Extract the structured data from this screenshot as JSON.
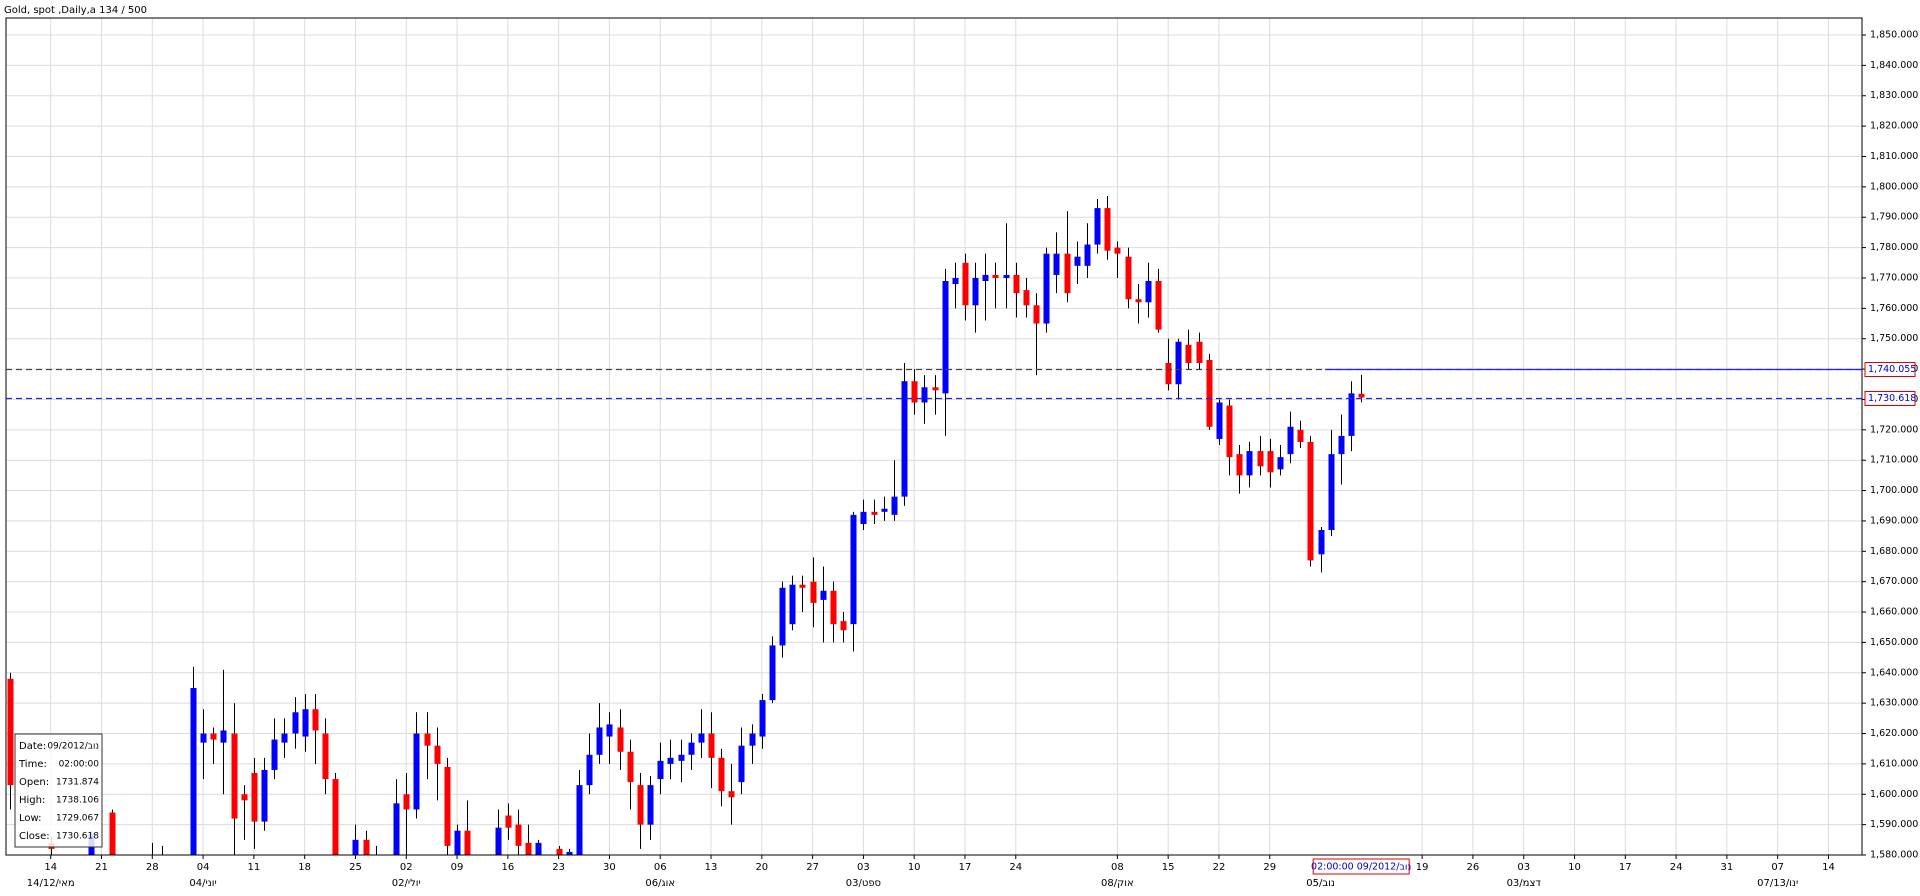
{
  "chart_data": {
    "type": "candlestick",
    "title": "Gold, spot ,Daily,a 134 / 500",
    "up_color": "#0000ff",
    "down_color": "#ff0000",
    "wick_color": "#000000",
    "grid": true,
    "xlim": [
      -0.4,
      182.3
    ],
    "ylim": [
      1580,
      1855.6
    ],
    "yticks": [
      {
        "value": 1580,
        "label": "1,580.000"
      },
      {
        "value": 1590,
        "label": "1,590.000"
      },
      {
        "value": 1600,
        "label": "1,600.000"
      },
      {
        "value": 1610,
        "label": "1,610.000"
      },
      {
        "value": 1620,
        "label": "1,620.000"
      },
      {
        "value": 1630,
        "label": "1,630.000"
      },
      {
        "value": 1640,
        "label": "1,640.000"
      },
      {
        "value": 1650,
        "label": "1,650.000"
      },
      {
        "value": 1660,
        "label": "1,660.000"
      },
      {
        "value": 1670,
        "label": "1,670.000"
      },
      {
        "value": 1680,
        "label": "1,680.000"
      },
      {
        "value": 1690,
        "label": "1,690.000"
      },
      {
        "value": 1700,
        "label": "1,700.000"
      },
      {
        "value": 1710,
        "label": "1,710.000"
      },
      {
        "value": 1720,
        "label": "1,720.000"
      },
      {
        "value": 1730,
        "label": "1,730.000"
      },
      {
        "value": 1740,
        "label": "1,740.000"
      },
      {
        "value": 1750,
        "label": "1,750.000"
      },
      {
        "value": 1760,
        "label": "1,760.000"
      },
      {
        "value": 1770,
        "label": "1,770.000"
      },
      {
        "value": 1780,
        "label": "1,780.000"
      },
      {
        "value": 1790,
        "label": "1,790.000"
      },
      {
        "value": 1800,
        "label": "1,800.000"
      },
      {
        "value": 1810,
        "label": "1,810.000"
      },
      {
        "value": 1820,
        "label": "1,820.000"
      },
      {
        "value": 1830,
        "label": "1,830.000"
      },
      {
        "value": 1840,
        "label": "1,840.000"
      },
      {
        "value": 1850,
        "label": "1,850.000"
      }
    ],
    "xticks": [
      {
        "value": 4,
        "label": "14"
      },
      {
        "value": 9,
        "label": "21"
      },
      {
        "value": 14,
        "label": "28"
      },
      {
        "value": 19,
        "label": "04"
      },
      {
        "value": 24,
        "label": "11"
      },
      {
        "value": 29,
        "label": "18"
      },
      {
        "value": 34,
        "label": "25"
      },
      {
        "value": 39,
        "label": "02"
      },
      {
        "value": 44,
        "label": "09"
      },
      {
        "value": 49,
        "label": "16"
      },
      {
        "value": 54,
        "label": "23"
      },
      {
        "value": 59,
        "label": "30"
      },
      {
        "value": 64,
        "label": "06"
      },
      {
        "value": 69,
        "label": "13"
      },
      {
        "value": 74,
        "label": "20"
      },
      {
        "value": 79,
        "label": "27"
      },
      {
        "value": 84,
        "label": "03"
      },
      {
        "value": 89,
        "label": "10"
      },
      {
        "value": 94,
        "label": "17"
      },
      {
        "value": 99,
        "label": "24"
      },
      {
        "value": 109,
        "label": "08"
      },
      {
        "value": 114,
        "label": "15"
      },
      {
        "value": 119,
        "label": "22"
      },
      {
        "value": 124,
        "label": "29"
      },
      {
        "value": 139,
        "label": "19"
      },
      {
        "value": 144,
        "label": "26"
      },
      {
        "value": 149,
        "label": "03"
      },
      {
        "value": 154,
        "label": "10"
      },
      {
        "value": 159,
        "label": "17"
      },
      {
        "value": 164,
        "label": "24"
      },
      {
        "value": 169,
        "label": "31"
      },
      {
        "value": 174,
        "label": "07"
      },
      {
        "value": 179,
        "label": "14"
      }
    ],
    "xticks_month": [
      {
        "value": 4,
        "label": "14/12/מאי"
      },
      {
        "value": 19,
        "label": "04/יוני"
      },
      {
        "value": 39,
        "label": "02/יולי"
      },
      {
        "value": 64,
        "label": "06/אוג"
      },
      {
        "value": 84,
        "label": "03/ספט"
      },
      {
        "value": 109,
        "label": "08/אוק"
      },
      {
        "value": 129,
        "label": "05/נוב"
      },
      {
        "value": 149,
        "label": "03/דצמ"
      },
      {
        "value": 174,
        "label": "07/13/ינו"
      }
    ],
    "open": [
      1638,
      null,
      null,
      null,
      1584,
      null,
      null,
      null,
      1580,
      null,
      1594,
      null,
      null,
      null,
      1576,
      1575,
      null,
      null,
      1575,
      1617,
      1620,
      1617,
      1620,
      1600,
      1607,
      1591,
      1608,
      1617,
      1620,
      1619,
      1628,
      1620,
      1605,
      null,
      1578,
      1585,
      1578,
      null,
      1578,
      1600,
      1595,
      1620,
      1616,
      1609,
      1577,
      1588,
      null,
      null,
      1575,
      1593,
      1590,
      1584,
      1578,
      null,
      1582,
      1579,
      1578,
      1603,
      1613,
      1619,
      1622,
      1614,
      1603,
      1590,
      1605,
      1610,
      1611,
      1613,
      1617,
      1620,
      1612,
      1601,
      1604,
      1616,
      1619,
      1631,
      1649,
      1656,
      1669,
      1670,
      1664,
      1667,
      1657,
      1656,
      1689,
      1693,
      1693,
      1692,
      1698,
      1736,
      1729,
      1734,
      1732,
      1768,
      1775,
      1761,
      1769,
      1771,
      1770,
      1771,
      1766,
      1761,
      1755,
      1771,
      1778,
      1774,
      1774,
      1781,
      1793,
      1780,
      1777,
      1763,
      1762,
      1769,
      1742,
      1735,
      1748,
      1749,
      1743,
      1717,
      1728,
      1712,
      1705,
      1713,
      1713,
      1707,
      1712,
      1720,
      1716,
      1679,
      1687,
      1712,
      1718,
      1731.874
    ],
    "high": [
      1640,
      null,
      null,
      null,
      1586,
      null,
      null,
      null,
      1588,
      null,
      1595,
      null,
      null,
      null,
      1584,
      1583,
      null,
      null,
      1642,
      1628,
      1622,
      1641,
      1630,
      1603,
      1612,
      1612,
      1625,
      1625,
      1632,
      1633,
      1633,
      1625,
      1607,
      null,
      1590,
      1588,
      1583,
      null,
      1605,
      1607,
      1627,
      1627,
      1622,
      1612,
      1590,
      1598,
      null,
      null,
      1595,
      1597,
      1595,
      1590,
      1585,
      null,
      1583,
      1582,
      1608,
      1620,
      1630,
      1627,
      1628,
      1618,
      1607,
      1606,
      1617,
      1618,
      1618,
      1620,
      1628,
      1627,
      1615,
      1610,
      1622,
      1623,
      1633,
      1652,
      1670,
      1672,
      1672,
      1678,
      1675,
      1670,
      1660,
      1693,
      1697,
      1697,
      1698,
      1710,
      1742,
      1740,
      1738,
      1738,
      1773,
      1775,
      1778,
      1775,
      1778,
      1775,
      1788,
      1775,
      1770,
      1765,
      1780,
      1785,
      1792,
      1782,
      1788,
      1796,
      1797,
      1782,
      1780,
      1768,
      1775,
      1773,
      1750,
      1750,
      1753,
      1752,
      1745,
      1730,
      1730,
      1715,
      1716,
      1718,
      1717,
      1715,
      1726,
      1723,
      1718,
      1688,
      1720,
      1725,
      1736,
      1738.106
    ],
    "low": [
      1595,
      null,
      null,
      null,
      1580,
      null,
      null,
      null,
      1576,
      null,
      1575,
      null,
      null,
      null,
      1570,
      1570,
      null,
      null,
      1572,
      1605,
      1610,
      1600,
      1575,
      1585,
      1582,
      1588,
      1605,
      1612,
      1615,
      1614,
      1610,
      1600,
      1572,
      null,
      1574,
      1575,
      1574,
      null,
      1575,
      1578,
      1592,
      1605,
      1598,
      1575,
      1570,
      1570,
      null,
      null,
      1572,
      1585,
      1578,
      1574,
      1575,
      null,
      1578,
      1576,
      1575,
      1600,
      1610,
      1610,
      1608,
      1595,
      1582,
      1585,
      1600,
      1605,
      1604,
      1608,
      1612,
      1602,
      1596,
      1590,
      1600,
      1610,
      1615,
      1630,
      1645,
      1654,
      1660,
      1655,
      1650,
      1650,
      1650,
      1647,
      1687,
      1689,
      1690,
      1690,
      1695,
      1725,
      1722,
      1725,
      1718,
      1760,
      1756,
      1752,
      1756,
      1760,
      1760,
      1757,
      1757,
      1738,
      1752,
      1765,
      1762,
      1768,
      1770,
      1778,
      1776,
      1770,
      1760,
      1755,
      1757,
      1752,
      1733,
      1730,
      1740,
      1740,
      1720,
      1715,
      1705,
      1699,
      1701,
      1705,
      1701,
      1705,
      1709,
      1714,
      1675,
      1673,
      1685,
      1702,
      1713,
      1729.067
    ],
    "close": [
      1603,
      null,
      null,
      null,
      1582,
      null,
      null,
      null,
      1587,
      null,
      1578,
      null,
      null,
      null,
      1575,
      1574,
      null,
      null,
      1635,
      1620,
      1618,
      1621,
      1592,
      1598,
      1591,
      1608,
      1618,
      1620,
      1627,
      1628,
      1621,
      1605,
      1577,
      null,
      1585,
      1578,
      1577,
      null,
      1597,
      1595,
      1620,
      1616,
      1610,
      1583,
      1588,
      1575,
      null,
      null,
      1589,
      1589,
      1583,
      1577,
      1584,
      null,
      1580,
      1581,
      1603,
      1613,
      1622,
      1623,
      1614,
      1604,
      1590,
      1603,
      1611,
      1612,
      1613,
      1617,
      1620,
      1612,
      1601,
      1599,
      1616,
      1620,
      1631,
      1649,
      1668,
      1669,
      1668,
      1663,
      1667,
      1656,
      1654,
      1692,
      1693,
      1692,
      1694,
      1698,
      1736,
      1729,
      1734,
      1733,
      1769,
      1770,
      1761,
      1770,
      1771,
      1770,
      1771,
      1765,
      1761,
      1755,
      1778,
      1778,
      1765,
      1777,
      1781,
      1793,
      1779,
      1778,
      1763,
      1762,
      1769,
      1753,
      1735,
      1749,
      1742,
      1742,
      1721,
      1729,
      1711,
      1705,
      1713,
      1708,
      1706,
      1711,
      1721,
      1716,
      1677,
      1687,
      1712,
      1718,
      1732,
      1730.618
    ],
    "hlines": [
      {
        "value": 1740.055,
        "label": "1,740.055",
        "color": "#444444"
      },
      {
        "value": 1730.618,
        "label": "1,730.618",
        "color": "#2222ee"
      }
    ],
    "crosshair": {
      "index": 133,
      "label": "02:00:00 09/2012/נוב"
    },
    "tooltip": {
      "labels": [
        "Date:",
        "Time:",
        "Open:",
        "High:",
        "Low:",
        "Close:"
      ],
      "date": "09/2012/נוב",
      "time": "02:00:00"
    }
  }
}
